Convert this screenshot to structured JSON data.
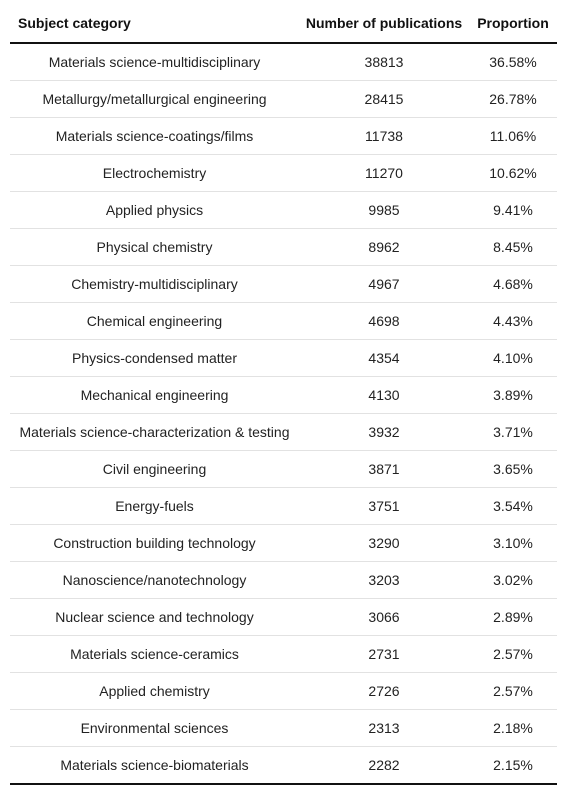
{
  "table": {
    "headers": {
      "category": "Subject category",
      "count": "Number of publications",
      "proportion": "Proportion"
    },
    "rows": [
      {
        "category": "Materials science-multidisciplinary",
        "count": "38813",
        "proportion": "36.58%"
      },
      {
        "category": "Metallurgy/metallurgical engineering",
        "count": "28415",
        "proportion": "26.78%"
      },
      {
        "category": "Materials science-coatings/films",
        "count": "11738",
        "proportion": "11.06%"
      },
      {
        "category": "Electrochemistry",
        "count": "11270",
        "proportion": "10.62%"
      },
      {
        "category": "Applied physics",
        "count": "9985",
        "proportion": "9.41%"
      },
      {
        "category": "Physical chemistry",
        "count": "8962",
        "proportion": "8.45%"
      },
      {
        "category": "Chemistry-multidisciplinary",
        "count": "4967",
        "proportion": "4.68%"
      },
      {
        "category": "Chemical engineering",
        "count": "4698",
        "proportion": "4.43%"
      },
      {
        "category": "Physics-condensed matter",
        "count": "4354",
        "proportion": "4.10%"
      },
      {
        "category": "Mechanical engineering",
        "count": "4130",
        "proportion": "3.89%"
      },
      {
        "category": "Materials science-characterization & testing",
        "count": "3932",
        "proportion": "3.71%"
      },
      {
        "category": "Civil engineering",
        "count": "3871",
        "proportion": "3.65%"
      },
      {
        "category": "Energy-fuels",
        "count": "3751",
        "proportion": "3.54%"
      },
      {
        "category": "Construction building technology",
        "count": "3290",
        "proportion": "3.10%"
      },
      {
        "category": "Nanoscience/nanotechnology",
        "count": "3203",
        "proportion": "3.02%"
      },
      {
        "category": "Nuclear science and technology",
        "count": "3066",
        "proportion": "2.89%"
      },
      {
        "category": "Materials science-ceramics",
        "count": "2731",
        "proportion": "2.57%"
      },
      {
        "category": "Applied chemistry",
        "count": "2726",
        "proportion": "2.57%"
      },
      {
        "category": "Environmental sciences",
        "count": "2313",
        "proportion": "2.18%"
      },
      {
        "category": "Materials science-biomaterials",
        "count": "2282",
        "proportion": "2.15%"
      }
    ]
  }
}
